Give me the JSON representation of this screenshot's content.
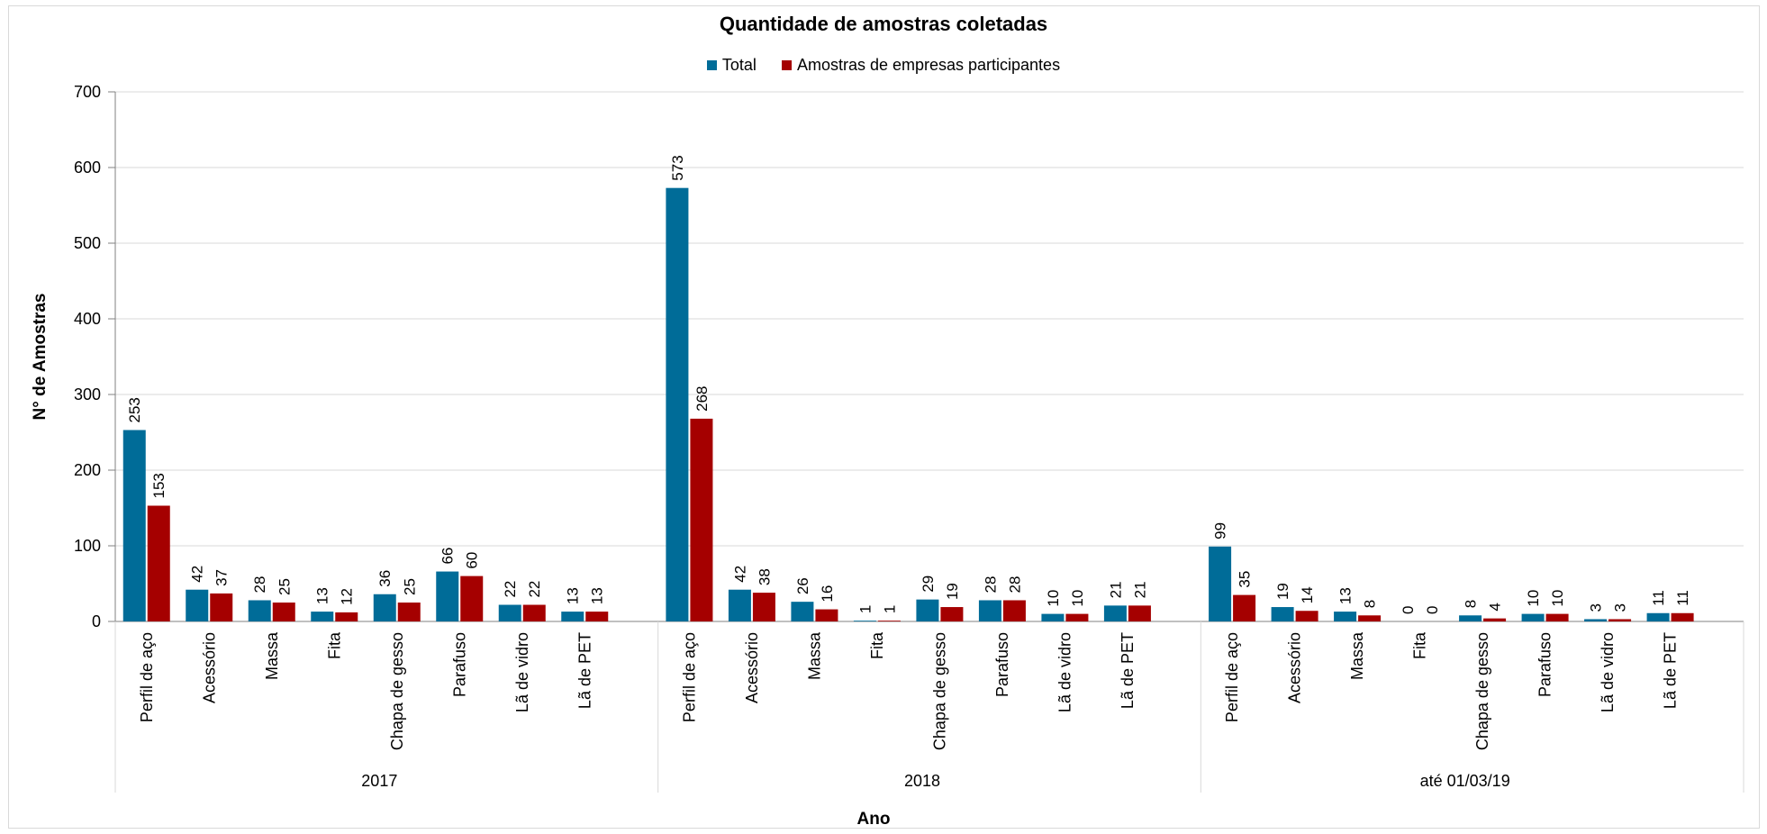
{
  "chart_data": {
    "type": "bar",
    "title": "Quantidade de amostras coletadas",
    "xlabel": "Ano",
    "ylabel": "N° de Amostras",
    "ylim": [
      0,
      700
    ],
    "yticks": [
      0,
      100,
      200,
      300,
      400,
      500,
      600,
      700
    ],
    "grid": true,
    "legend_position": "top",
    "groups": [
      {
        "name": "2017",
        "categories": [
          "Perfil de aço",
          "Acessório",
          "Massa",
          "Fita",
          "Chapa de gesso",
          "Parafuso",
          "Lã de vidro",
          "Lã de PET"
        ],
        "series": [
          {
            "name": "Total",
            "values": [
              253,
              42,
              28,
              13,
              36,
              66,
              22,
              13
            ]
          },
          {
            "name": "Amostras de empresas participantes",
            "values": [
              153,
              37,
              25,
              12,
              25,
              60,
              22,
              13
            ]
          }
        ]
      },
      {
        "name": "2018",
        "categories": [
          "Perfil de aço",
          "Acessório",
          "Massa",
          "Fita",
          "Chapa de gesso",
          "Parafuso",
          "Lã de vidro",
          "Lã de PET"
        ],
        "series": [
          {
            "name": "Total",
            "values": [
              573,
              42,
              26,
              1,
              29,
              28,
              10,
              21
            ]
          },
          {
            "name": "Amostras de empresas participantes",
            "values": [
              268,
              38,
              16,
              1,
              19,
              28,
              10,
              21
            ]
          }
        ]
      },
      {
        "name": "até 01/03/19",
        "categories": [
          "Perfil de aço",
          "Acessório",
          "Massa",
          "Fita",
          "Chapa de gesso",
          "Parafuso",
          "Lã de vidro",
          "Lã de PET"
        ],
        "series": [
          {
            "name": "Total",
            "values": [
              99,
              19,
              13,
              0,
              8,
              10,
              3,
              11
            ]
          },
          {
            "name": "Amostras de empresas participantes",
            "values": [
              35,
              14,
              8,
              0,
              4,
              10,
              3,
              11
            ]
          }
        ]
      }
    ],
    "legend": [
      {
        "name": "Total",
        "color": "#006c98"
      },
      {
        "name": "Amostras de empresas participantes",
        "color": "#a50000"
      }
    ]
  }
}
